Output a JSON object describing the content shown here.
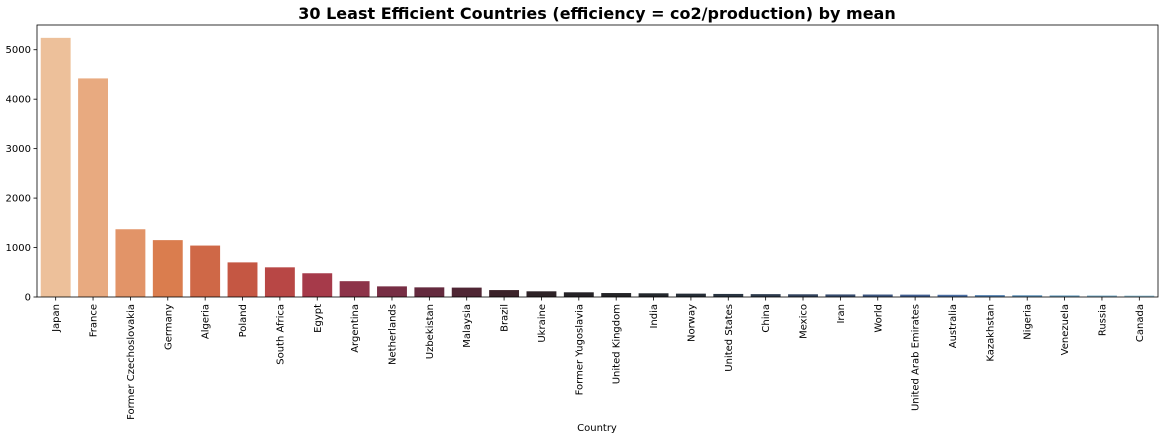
{
  "chart_data": {
    "type": "bar",
    "title": "30 Least Efficient Countries (efficiency = co2/production) by mean",
    "xlabel": "Country",
    "ylabel": "",
    "ylim": [
      0,
      5500
    ],
    "yticks": [
      0,
      1000,
      2000,
      3000,
      4000,
      5000
    ],
    "grid": false,
    "categories": [
      "Japan",
      "France",
      "Former Czechoslovakia",
      "Germany",
      "Algeria",
      "Poland",
      "South Africa",
      "Egypt",
      "Argentina",
      "Netherlands",
      "Uzbekistan",
      "Malaysia",
      "Brazil",
      "Ukraine",
      "Former Yugoslavia",
      "United Kingdom",
      "India",
      "Norway",
      "United States",
      "China",
      "Mexico",
      "Iran",
      "World",
      "United Arab Emirates",
      "Australia",
      "Kazakhstan",
      "Nigeria",
      "Venezuela",
      "Russia",
      "Canada"
    ],
    "values": [
      5240,
      4420,
      1370,
      1150,
      1040,
      700,
      600,
      480,
      320,
      215,
      195,
      190,
      140,
      115,
      95,
      80,
      75,
      68,
      62,
      58,
      55,
      52,
      50,
      48,
      45,
      38,
      35,
      32,
      30,
      28
    ],
    "colors": [
      "#edc09a",
      "#e8aa80",
      "#e29468",
      "#da7d4e",
      "#cf6847",
      "#c55743",
      "#b84745",
      "#a63a4a",
      "#8d3349",
      "#772e44",
      "#642a3e",
      "#4f2634",
      "#3b2229",
      "#2d2226",
      "#252226",
      "#242427",
      "#23272c",
      "#252d36",
      "#293441",
      "#2d3b4d",
      "#32435d",
      "#374c6e",
      "#3c5680",
      "#415f92",
      "#4a6ea4",
      "#5180b0",
      "#5c91b8",
      "#6a9fbf",
      "#7daec8",
      "#8fbfd2"
    ]
  }
}
